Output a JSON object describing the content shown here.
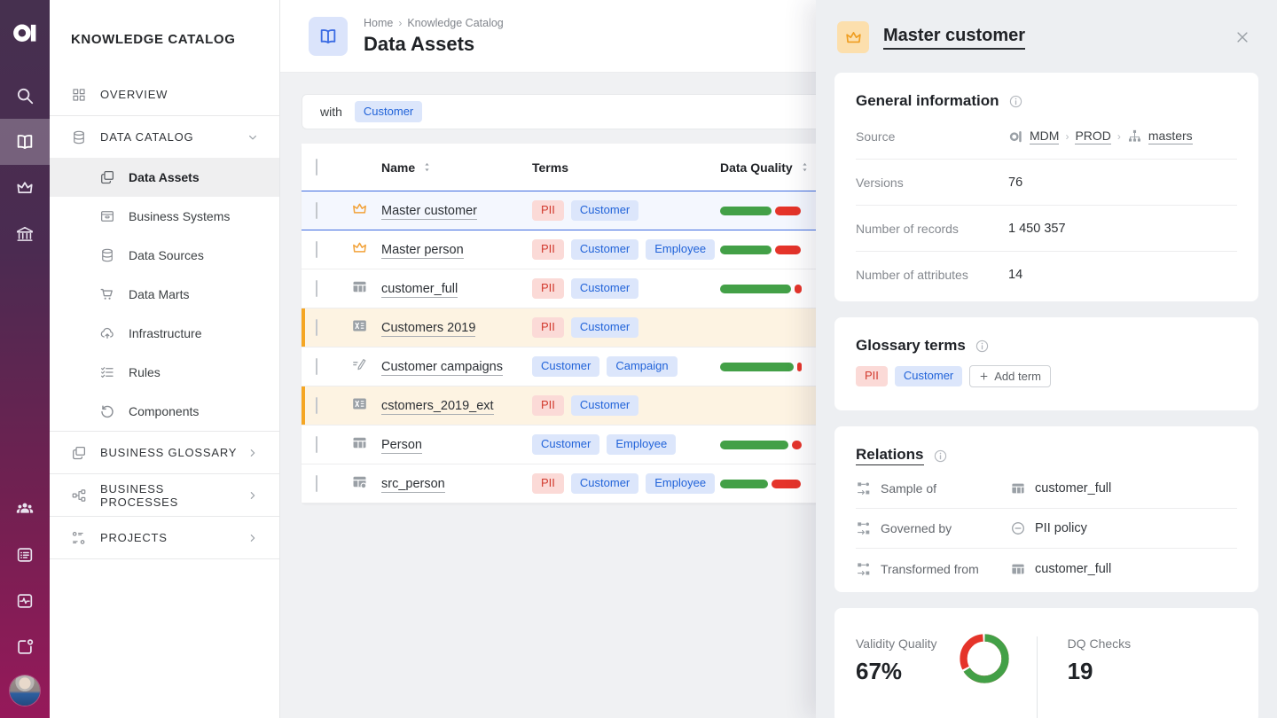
{
  "colors": {
    "accent_blue": "#2d62d9",
    "chip_blue_bg": "#dce6fb",
    "chip_blue_text": "#2163d9",
    "chip_red_bg": "#fbdad7",
    "chip_red_text": "#d23a2e",
    "quality_green": "#43a047",
    "quality_red": "#e5342a",
    "flag_orange": "#f5a623",
    "flag_row_bg": "#fdf3e2",
    "selected_row_border": "#3d6be0"
  },
  "rail": {
    "items": [
      {
        "name": "search",
        "icon": "search",
        "active": false
      },
      {
        "name": "knowledge-catalog",
        "icon": "book",
        "active": true
      },
      {
        "name": "master-data",
        "icon": "crown",
        "active": false
      },
      {
        "name": "governance",
        "icon": "bank",
        "active": false
      }
    ],
    "bottom_items": [
      {
        "name": "users",
        "icon": "people"
      },
      {
        "name": "tasks",
        "icon": "listcard"
      },
      {
        "name": "monitoring",
        "icon": "pulsecard"
      },
      {
        "name": "apps",
        "icon": "windowdot"
      }
    ]
  },
  "sidebar": {
    "title": "KNOWLEDGE CATALOG",
    "items": [
      {
        "label": "OVERVIEW",
        "icon": "grid",
        "level": "top"
      },
      {
        "label": "DATA CATALOG",
        "icon": "db",
        "level": "top",
        "chevron": "down",
        "divider_before": true
      },
      {
        "label": "Data Assets",
        "icon": "copy",
        "level": "sub",
        "active": true
      },
      {
        "label": "Business Systems",
        "icon": "archive",
        "level": "sub"
      },
      {
        "label": "Data Sources",
        "icon": "db",
        "level": "sub"
      },
      {
        "label": "Data Marts",
        "icon": "cart",
        "level": "sub"
      },
      {
        "label": "Infrastructure",
        "icon": "cloud",
        "level": "sub"
      },
      {
        "label": "Rules",
        "icon": "checklist",
        "level": "sub"
      },
      {
        "label": "Components",
        "icon": "undo",
        "level": "sub",
        "group_end": true
      },
      {
        "label": "BUSINESS GLOSSARY",
        "icon": "copy",
        "level": "top",
        "chevron": "right",
        "divider_before": true
      },
      {
        "label": "BUSINESS PROCESSES",
        "icon": "process",
        "level": "top",
        "chevron": "right",
        "divider_before": true
      },
      {
        "label": "PROJECTS",
        "icon": "kanban",
        "level": "top",
        "chevron": "right",
        "divider_before": true,
        "divider_after": true
      }
    ]
  },
  "main": {
    "breadcrumb": {
      "parts": [
        "Home",
        "Knowledge Catalog"
      ],
      "separator": "›"
    },
    "title": "Data Assets",
    "filter": {
      "prefix": "with",
      "chips": [
        {
          "label": "Customer",
          "type": "blue"
        }
      ]
    },
    "table": {
      "header": {
        "name": "Name",
        "terms": "Terms",
        "quality": "Data Quality"
      },
      "rows": [
        {
          "name": "Master customer",
          "icon": "crown",
          "icon_color": "orange",
          "selected": true,
          "flagged": false,
          "terms": [
            {
              "label": "PII",
              "type": "red"
            },
            {
              "label": "Customer",
              "type": "blue"
            }
          ],
          "quality": {
            "green": 58,
            "red": 29
          }
        },
        {
          "name": "Master person",
          "icon": "crown",
          "icon_color": "orange",
          "selected": false,
          "flagged": false,
          "terms": [
            {
              "label": "PII",
              "type": "red"
            },
            {
              "label": "Customer",
              "type": "blue"
            },
            {
              "label": "Employee",
              "type": "blue"
            }
          ],
          "quality": {
            "green": 58,
            "red": 29
          }
        },
        {
          "name": "customer_full",
          "icon": "tablegrid",
          "icon_color": "gray",
          "selected": false,
          "flagged": false,
          "terms": [
            {
              "label": "PII",
              "type": "red"
            },
            {
              "label": "Customer",
              "type": "blue"
            }
          ],
          "quality": {
            "green": 80,
            "red": 8
          }
        },
        {
          "name": "Customers 2019",
          "icon": "excel",
          "icon_color": "gray",
          "selected": false,
          "flagged": true,
          "terms": [
            {
              "label": "PII",
              "type": "red"
            },
            {
              "label": "Customer",
              "type": "blue"
            }
          ],
          "quality": null
        },
        {
          "name": "Customer campaigns",
          "icon": "editlines",
          "icon_color": "gray",
          "selected": false,
          "flagged": false,
          "terms": [
            {
              "label": "Customer",
              "type": "blue"
            },
            {
              "label": "Campaign",
              "type": "blue"
            }
          ],
          "quality": {
            "green": 83,
            "red": 5
          }
        },
        {
          "name": "cstomers_2019_ext",
          "icon": "excel",
          "icon_color": "gray",
          "selected": false,
          "flagged": true,
          "terms": [
            {
              "label": "PII",
              "type": "red"
            },
            {
              "label": "Customer",
              "type": "blue"
            }
          ],
          "quality": null
        },
        {
          "name": "Person",
          "icon": "tablegrid",
          "icon_color": "gray",
          "selected": false,
          "flagged": false,
          "terms": [
            {
              "label": "Customer",
              "type": "blue"
            },
            {
              "label": "Employee",
              "type": "blue"
            }
          ],
          "quality": {
            "green": 77,
            "red": 11
          }
        },
        {
          "name": "src_person",
          "icon": "tabledot",
          "icon_color": "gray",
          "selected": false,
          "flagged": false,
          "terms": [
            {
              "label": "PII",
              "type": "red"
            },
            {
              "label": "Customer",
              "type": "blue"
            },
            {
              "label": "Employee",
              "type": "blue"
            }
          ],
          "quality": {
            "green": 54,
            "red": 33
          }
        }
      ]
    }
  },
  "panel": {
    "title": "Master customer",
    "general": {
      "title": "General information",
      "source_label": "Source",
      "source_parts": [
        {
          "icon": "alogo",
          "text": "MDM"
        },
        {
          "icon": null,
          "text": "PROD"
        },
        {
          "icon": "tree",
          "text": "masters"
        }
      ],
      "rows": [
        {
          "label": "Versions",
          "value": "76"
        },
        {
          "label": "Number of records",
          "value": "1 450 357"
        },
        {
          "label": "Number of attributes",
          "value": "14"
        }
      ]
    },
    "glossary": {
      "title": "Glossary terms",
      "terms": [
        {
          "label": "PII",
          "type": "red"
        },
        {
          "label": "Customer",
          "type": "blue"
        }
      ],
      "add_label": "Add term"
    },
    "relations": {
      "title": "Relations",
      "rows": [
        {
          "label": "Sample of",
          "value_icon": "tablegrid",
          "value": "customer_full"
        },
        {
          "label": "Governed by",
          "value_icon": "minuscircle",
          "value": "PII policy"
        },
        {
          "label": "Transformed from",
          "value_icon": "tablegrid",
          "value": "customer_full"
        }
      ]
    },
    "quality": {
      "left_label": "Validity Quality",
      "left_value": "67%",
      "donut": {
        "type": "pie",
        "green_pct": 67,
        "red_pct": 33
      },
      "right_label": "DQ Checks",
      "right_value": "19"
    }
  }
}
